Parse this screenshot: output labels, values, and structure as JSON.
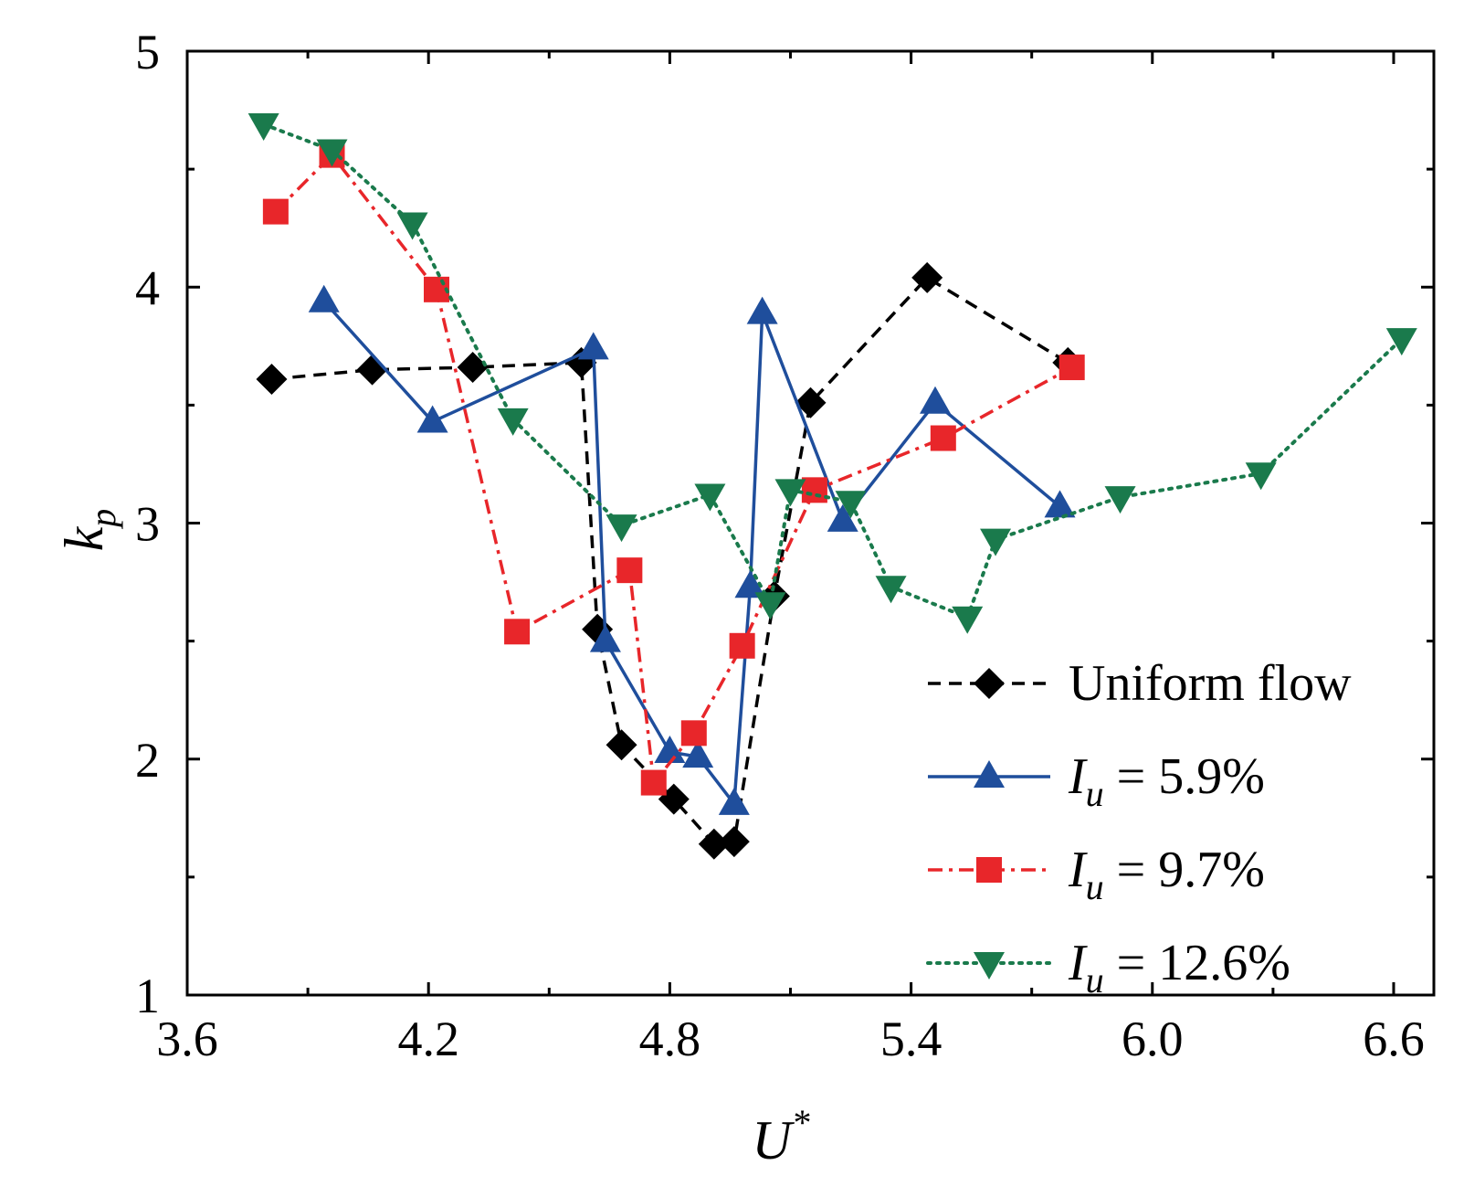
{
  "chart_data": {
    "type": "line",
    "title": "",
    "xlabel": "U",
    "xlabel_sup": "*",
    "ylabel": "k",
    "ylabel_sub": "p",
    "xlim": [
      3.6,
      6.7
    ],
    "ylim": [
      1,
      5
    ],
    "xticks": [
      3.6,
      4.2,
      4.8,
      5.4,
      6.0,
      6.6
    ],
    "xtick_labels": [
      "3.6",
      "4.2",
      "4.8",
      "5.4",
      "6.0",
      "6.6"
    ],
    "xminor": [
      3.9,
      4.5,
      5.1,
      5.7,
      6.3
    ],
    "yticks": [
      1,
      2,
      3,
      4,
      5
    ],
    "ytick_labels": [
      "1",
      "2",
      "3",
      "4",
      "5"
    ],
    "yminor": [
      1.5,
      2.5,
      3.5,
      4.5
    ],
    "legend_position": "bottom-right",
    "series": [
      {
        "name": "Uniform flow",
        "legend_main": "Uniform flow",
        "legend_sub": "",
        "legend_rest": "",
        "marker": "diamond",
        "dash": "dashed",
        "color": "#000000",
        "x": [
          3.81,
          4.06,
          4.31,
          4.58,
          4.62,
          4.68,
          4.81,
          4.91,
          4.96,
          5.06,
          5.15,
          5.44,
          5.79
        ],
        "y": [
          3.61,
          3.65,
          3.66,
          3.68,
          2.55,
          2.06,
          1.83,
          1.64,
          1.65,
          2.69,
          3.51,
          4.04,
          3.68
        ]
      },
      {
        "name": "Iu = 5.9%",
        "legend_main": "I",
        "legend_sub": "u",
        "legend_rest": " = 5.9%",
        "marker": "triangle-up",
        "dash": "solid",
        "color": "#1f4e9c",
        "x": [
          3.94,
          4.21,
          4.61,
          4.64,
          4.8,
          4.87,
          4.96,
          5.0,
          5.03,
          5.23,
          5.46,
          5.77
        ],
        "y": [
          3.94,
          3.43,
          3.74,
          2.5,
          2.03,
          2.01,
          1.81,
          2.73,
          3.89,
          3.01,
          3.51,
          3.07
        ]
      },
      {
        "name": "Iu = 9.7%",
        "legend_main": "I",
        "legend_sub": "u",
        "legend_rest": " = 9.7%",
        "marker": "square",
        "dash": "dashdot",
        "color": "#e8262a",
        "x": [
          3.82,
          3.96,
          4.22,
          4.42,
          4.7,
          4.76,
          4.86,
          4.98,
          5.16,
          5.48,
          5.8
        ],
        "y": [
          4.32,
          4.56,
          3.99,
          2.54,
          2.8,
          1.9,
          2.11,
          2.48,
          3.14,
          3.36,
          3.66
        ]
      },
      {
        "name": "Iu = 12.6%",
        "legend_main": "I",
        "legend_sub": "u",
        "legend_rest": " = 12.6%",
        "marker": "triangle-down",
        "dash": "dotted",
        "color": "#1a7a4c",
        "x": [
          3.79,
          3.96,
          4.16,
          4.41,
          4.68,
          4.9,
          5.05,
          5.1,
          5.25,
          5.35,
          5.54,
          5.61,
          5.92,
          6.27,
          6.62
        ],
        "y": [
          4.69,
          4.58,
          4.27,
          3.44,
          2.99,
          3.12,
          2.66,
          3.14,
          3.09,
          2.73,
          2.6,
          2.93,
          3.11,
          3.21,
          3.78
        ]
      }
    ]
  }
}
